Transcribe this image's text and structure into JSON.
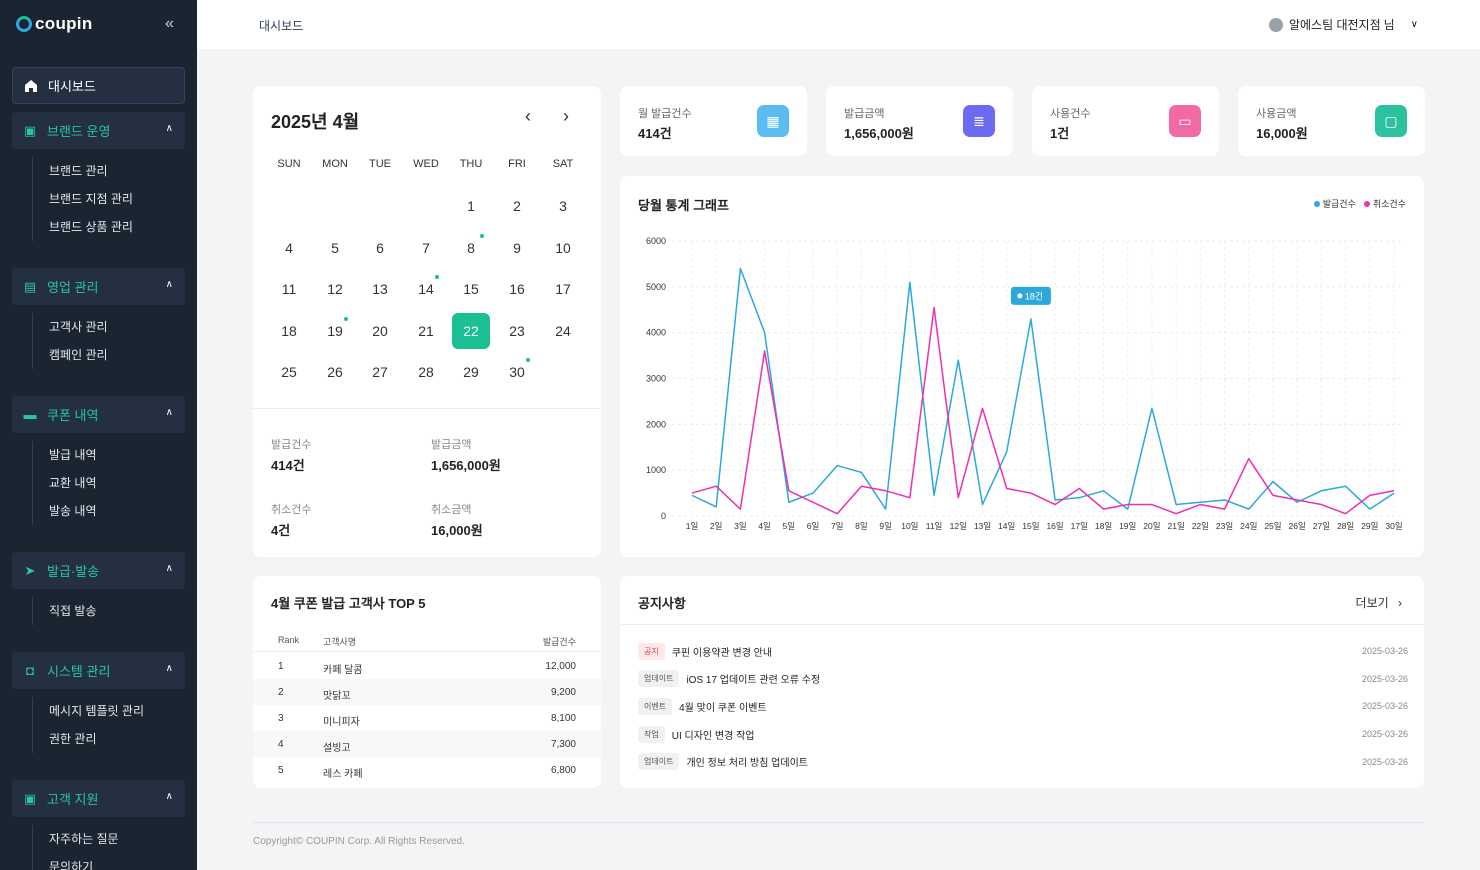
{
  "app": {
    "logo": "coupin",
    "collapse_icon": "double-chevron-left-icon"
  },
  "sidebar": {
    "dashboard": "대시보드",
    "groups": [
      {
        "label": "브랜드 운영",
        "icon": "store-icon",
        "items": [
          "브랜드 관리",
          "브랜드 지점 관리",
          "브랜드 상품 관리"
        ]
      },
      {
        "label": "영업 관리",
        "icon": "box-icon",
        "items": [
          "고객사 관리",
          "캠페인 관리"
        ]
      },
      {
        "label": "쿠폰 내역",
        "icon": "ticket-icon",
        "items": [
          "발급 내역",
          "교환 내역",
          "발송 내역"
        ]
      },
      {
        "label": "발급·발송",
        "icon": "send-icon",
        "items": [
          "직접 발송"
        ]
      },
      {
        "label": "시스템 관리",
        "icon": "lock-icon",
        "items": [
          "메시지 템플릿 관리",
          "권한 관리"
        ]
      },
      {
        "label": "고객 지원",
        "icon": "support-icon",
        "items": [
          "자주하는 질문",
          "문의하기"
        ]
      }
    ]
  },
  "header": {
    "breadcrumb": "대시보드",
    "user": "알에스팀 대전지점",
    "user_suffix": "님"
  },
  "calendar": {
    "title": "2025년 4월",
    "weekdays": [
      "SUN",
      "MON",
      "TUE",
      "WED",
      "THU",
      "FRI",
      "SAT"
    ],
    "first_weekday": 4,
    "days_in_month": 30,
    "selected": 22,
    "dots": [
      8,
      14,
      19,
      30
    ],
    "stats": {
      "issue_count_label": "발급건수",
      "issue_count": "414건",
      "issue_amount_label": "발급금액",
      "issue_amount": "1,656,000원",
      "cancel_count_label": "취소건수",
      "cancel_count": "4건",
      "cancel_amount_label": "취소금액",
      "cancel_amount": "16,000원"
    }
  },
  "kpis": [
    {
      "label": "월 발급건수",
      "value": "414건",
      "color": "#5bbcf2",
      "icon": "calendar-icon"
    },
    {
      "label": "발급금액",
      "value": "1,656,000원",
      "color": "#6b6af0",
      "icon": "coins-icon"
    },
    {
      "label": "사용건수",
      "value": "1건",
      "color": "#f16aa6",
      "icon": "ticket-icon"
    },
    {
      "label": "사용금액",
      "value": "16,000원",
      "color": "#2cc2a0",
      "icon": "cash-icon"
    }
  ],
  "chart": {
    "title": "당월 통계 그래프",
    "legend_issue": "발급건수",
    "legend_cancel": "취소건수",
    "tooltip": "18건"
  },
  "chart_data": {
    "type": "line",
    "x": [
      "1일",
      "2일",
      "3일",
      "4일",
      "5일",
      "6일",
      "7일",
      "8일",
      "9일",
      "10일",
      "11일",
      "12일",
      "13일",
      "14일",
      "15일",
      "16일",
      "17일",
      "18일",
      "19일",
      "20일",
      "21일",
      "22일",
      "23일",
      "24일",
      "25일",
      "26일",
      "27일",
      "28일",
      "29일",
      "30일"
    ],
    "series": [
      {
        "name": "발급건수",
        "color": "#2ba9dc",
        "values": [
          450,
          200,
          5400,
          4000,
          300,
          500,
          1100,
          950,
          150,
          5100,
          450,
          3400,
          250,
          1400,
          4300,
          350,
          400,
          550,
          150,
          2350,
          250,
          300,
          350,
          150,
          750,
          300,
          550,
          650,
          150,
          500
        ]
      },
      {
        "name": "취소건수",
        "color": "#ee2fb0",
        "values": [
          500,
          650,
          150,
          3600,
          550,
          300,
          50,
          650,
          550,
          400,
          4550,
          400,
          2350,
          600,
          500,
          250,
          600,
          150,
          250,
          250,
          50,
          250,
          150,
          1250,
          450,
          350,
          250,
          50,
          450,
          550
        ]
      }
    ],
    "yticks": [
      0,
      1000,
      2000,
      3000,
      4000,
      5000,
      6000
    ],
    "ylim": [
      0,
      6000
    ],
    "grid": true,
    "legend": "top-right"
  },
  "top5": {
    "title": "4월 쿠폰 발급 고객사 TOP 5",
    "headers": [
      "Rank",
      "고객사명",
      "발급건수"
    ],
    "rows": [
      {
        "rank": "1",
        "name": "카페 달콤",
        "count": "12,000"
      },
      {
        "rank": "2",
        "name": "맛닭꼬",
        "count": "9,200"
      },
      {
        "rank": "3",
        "name": "미니피자",
        "count": "8,100"
      },
      {
        "rank": "4",
        "name": "설빙고",
        "count": "7,300"
      },
      {
        "rank": "5",
        "name": "레스 카페",
        "count": "6,800"
      }
    ]
  },
  "notices": {
    "title": "공지사항",
    "more": "더보기",
    "rows": [
      {
        "tag": "공지",
        "red": true,
        "text": "쿠핀 이용약관 변경 안내",
        "date": "2025-03-26"
      },
      {
        "tag": "업데이트",
        "red": false,
        "text": "iOS 17 업데이트 관련 오류 수정",
        "date": "2025-03-26"
      },
      {
        "tag": "이벤트",
        "red": false,
        "text": "4월 맞이 쿠폰 이벤트",
        "date": "2025-03-26"
      },
      {
        "tag": "작업",
        "red": false,
        "text": "UI 디자인 변경 작업",
        "date": "2025-03-26"
      },
      {
        "tag": "업데이트",
        "red": false,
        "text": "개인 정보 처리 방침 업데이트",
        "date": "2025-03-26"
      }
    ]
  },
  "footer": "Copyright© COUPIN Corp. All Rights Reserved."
}
